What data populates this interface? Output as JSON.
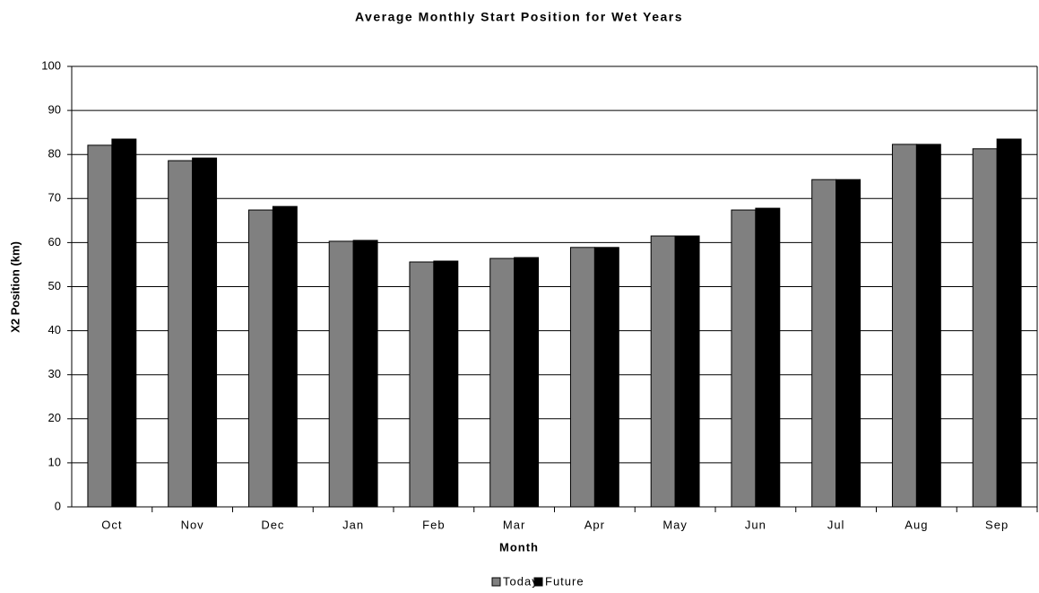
{
  "chart_data": {
    "type": "bar",
    "title": "Average Monthly Start Position for Wet Years",
    "x_label": "Month",
    "y_label": "X2 Position (km)",
    "categories": [
      "Oct",
      "Nov",
      "Dec",
      "Jan",
      "Feb",
      "Mar",
      "Apr",
      "May",
      "Jun",
      "Jul",
      "Aug",
      "Sep"
    ],
    "series": [
      {
        "name": "Today",
        "color": "#808080",
        "values": [
          82.1,
          78.6,
          67.4,
          60.3,
          55.6,
          56.4,
          58.9,
          61.5,
          67.4,
          74.3,
          82.3,
          81.3
        ]
      },
      {
        "name": "Future",
        "color": "#000000",
        "values": [
          83.5,
          79.2,
          68.2,
          60.5,
          55.8,
          56.6,
          58.9,
          61.5,
          67.8,
          74.3,
          82.3,
          83.5
        ]
      }
    ],
    "ylim": [
      0,
      100
    ],
    "yticks": [
      0,
      10,
      20,
      30,
      40,
      50,
      60,
      70,
      80,
      90,
      100
    ],
    "grid": true,
    "legend": "bottom"
  }
}
